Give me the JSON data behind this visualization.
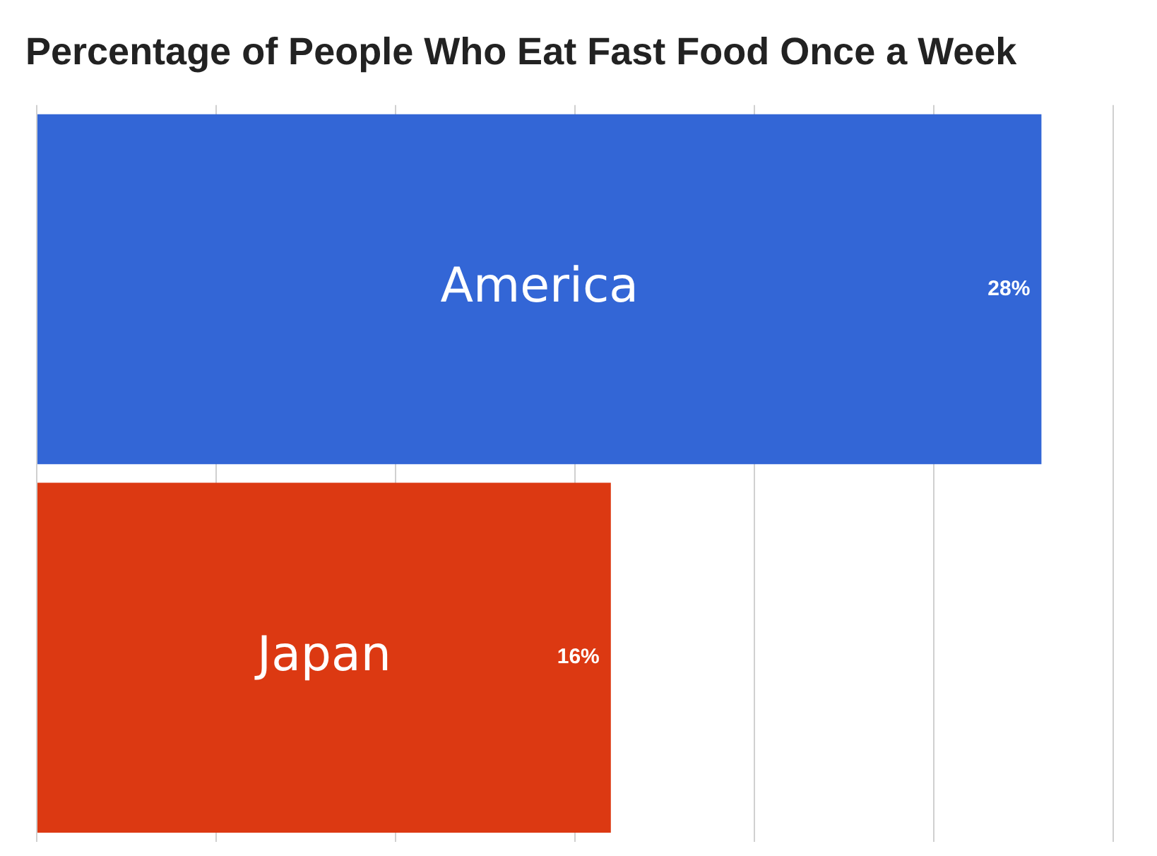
{
  "chart_data": {
    "type": "bar",
    "orientation": "horizontal",
    "title": "Percentage of People Who Eat Fast Food Once a Week",
    "categories": [
      "America",
      "Japan"
    ],
    "values": [
      28,
      16
    ],
    "value_labels": [
      "28%",
      "16%"
    ],
    "colors": [
      "#3366d6",
      "#dc3912"
    ],
    "grid": "x"
  }
}
